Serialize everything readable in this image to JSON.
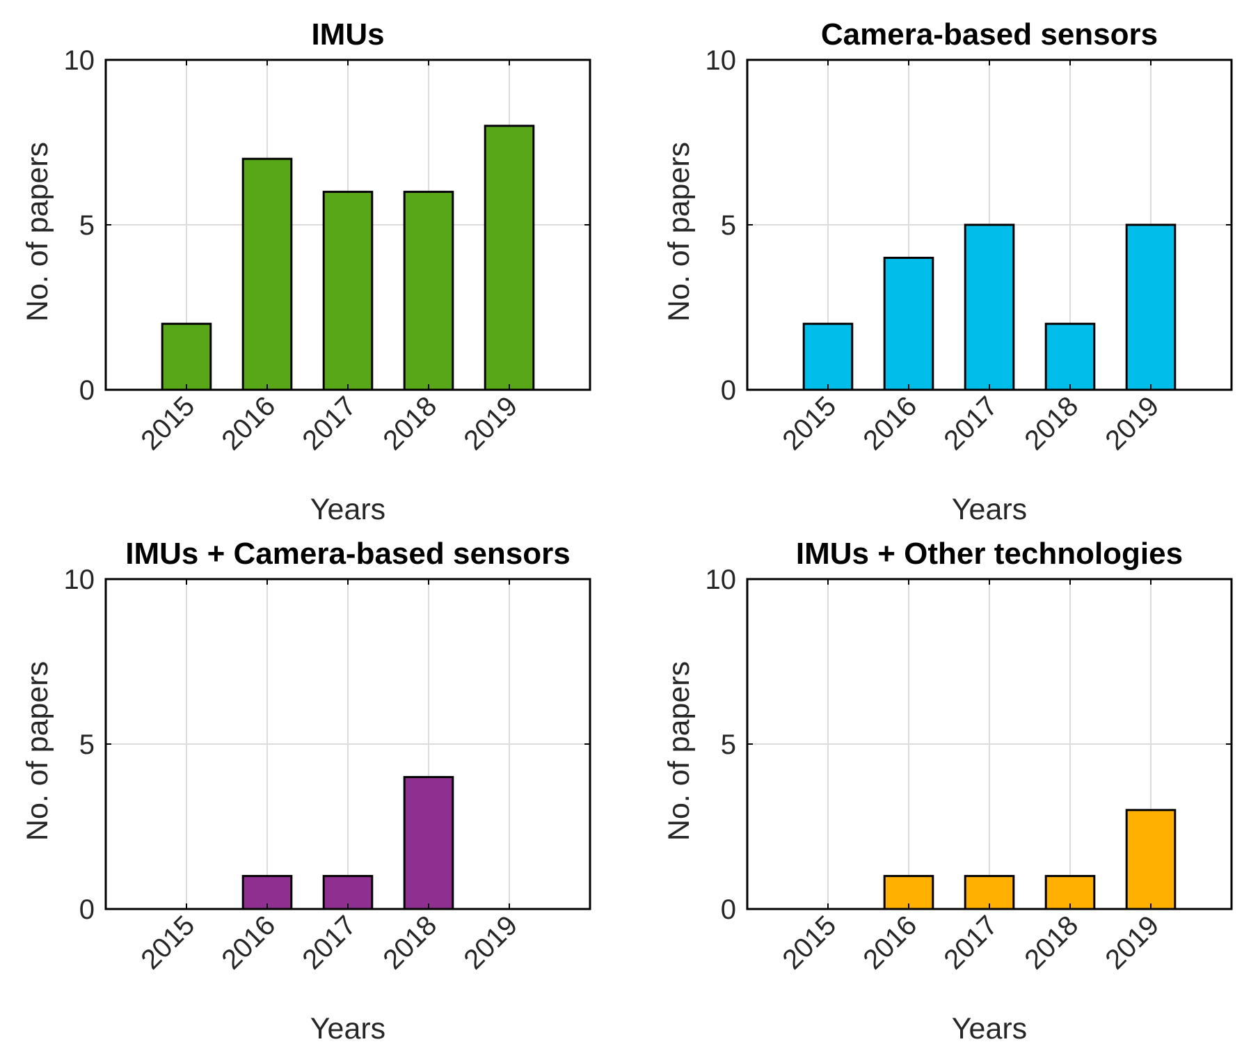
{
  "chart_data": [
    {
      "type": "bar",
      "title": "IMUs",
      "categories": [
        "2015",
        "2016",
        "2017",
        "2018",
        "2019"
      ],
      "values": [
        2,
        7,
        6,
        6,
        8
      ],
      "color": "#58a718",
      "xlabel": "Years",
      "ylabel": "No. of papers",
      "ylim": [
        0,
        10
      ],
      "yticks": [
        "0",
        "5",
        "10"
      ],
      "grid": true
    },
    {
      "type": "bar",
      "title": "Camera-based sensors",
      "categories": [
        "2015",
        "2016",
        "2017",
        "2018",
        "2019"
      ],
      "values": [
        2,
        4,
        5,
        2,
        5
      ],
      "color": "#00bdea",
      "xlabel": "Years",
      "ylabel": "No. of papers",
      "ylim": [
        0,
        10
      ],
      "yticks": [
        "0",
        "5",
        "10"
      ],
      "grid": true
    },
    {
      "type": "bar",
      "title": "IMUs + Camera-based sensors",
      "categories": [
        "2015",
        "2016",
        "2017",
        "2018",
        "2019"
      ],
      "values": [
        0,
        1,
        1,
        4,
        0
      ],
      "color": "#8f2f8f",
      "xlabel": "Years",
      "ylabel": "No. of papers",
      "ylim": [
        0,
        10
      ],
      "yticks": [
        "0",
        "5",
        "10"
      ],
      "grid": true
    },
    {
      "type": "bar",
      "title": "IMUs + Other technologies",
      "categories": [
        "2015",
        "2016",
        "2017",
        "2018",
        "2019"
      ],
      "values": [
        0,
        1,
        1,
        1,
        3
      ],
      "color": "#ffb000",
      "xlabel": "Years",
      "ylabel": "No. of papers",
      "ylim": [
        0,
        10
      ],
      "yticks": [
        "0",
        "5",
        "10"
      ],
      "grid": true
    }
  ]
}
